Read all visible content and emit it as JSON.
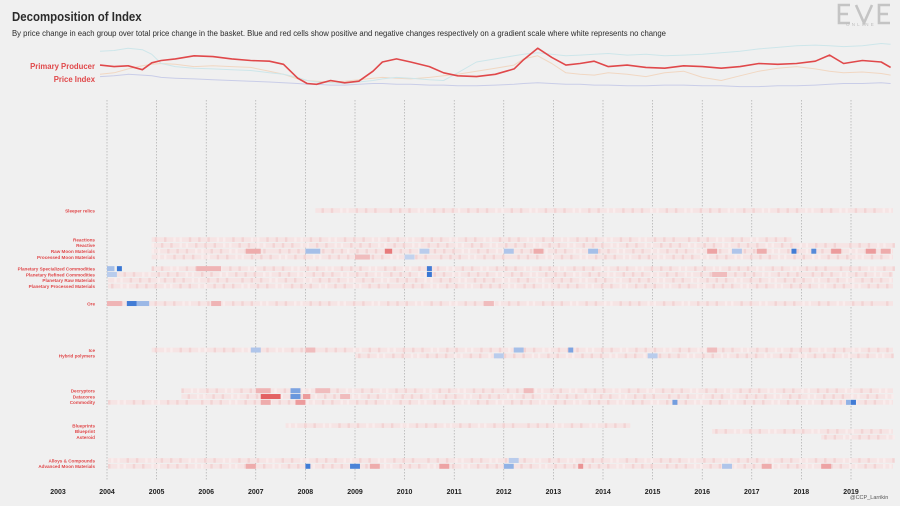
{
  "header": {
    "title": "Decomposition of Index",
    "subtitle": "By price change in each group over total price change in the basket. Blue and red cells show positive and negative changes respectively on a gradient scale where white represents no change",
    "logo_text": "EVE",
    "logo_subtext": "ONLINE",
    "credit": "@CCP_Larrikin"
  },
  "colors": {
    "index_line": "#e0484a",
    "positive": "#2e6fd1",
    "negative": "#e0484a",
    "highlight_label": "#e0484a",
    "faded_label": "#f2c2c2",
    "gridline": "#a0a0a0",
    "background": "#f0f0f0"
  },
  "chart_data": [
    {
      "type": "line",
      "title": "Primary Producer Price Index",
      "x": [
        2003.0,
        2003.3,
        2003.6,
        2003.9,
        2004.1,
        2004.3,
        2004.6,
        2005.0,
        2005.4,
        2005.8,
        2006.2,
        2006.6,
        2006.9,
        2007.2,
        2007.4,
        2007.6,
        2007.9,
        2008.2,
        2008.5,
        2008.8,
        2009.0,
        2009.3,
        2009.6,
        2010.0,
        2010.3,
        2010.6,
        2011.0,
        2011.4,
        2011.8,
        2012.0,
        2012.3,
        2012.6,
        2012.9,
        2013.2,
        2013.5,
        2013.8,
        2014.2,
        2014.6,
        2015.0,
        2015.4,
        2015.8,
        2016.2,
        2016.6,
        2017.0,
        2017.4,
        2017.8,
        2018.2,
        2018.5,
        2018.8,
        2019.2,
        2019.6,
        2019.8
      ],
      "series": [
        {
          "name": "Primary Producer Price Index",
          "values": [
            120,
            118,
            119,
            114,
            123,
            126,
            128,
            132,
            131,
            128,
            126,
            125,
            121,
            103,
            96,
            95,
            100,
            97,
            99,
            112,
            124,
            128,
            124,
            118,
            110,
            106,
            105,
            108,
            115,
            127,
            142,
            130,
            120,
            122,
            125,
            118,
            120,
            117,
            116,
            119,
            118,
            116,
            118,
            122,
            121,
            122,
            125,
            133,
            122,
            126,
            124,
            117
          ]
        },
        {
          "values": [
            138,
            139,
            142,
            140,
            134,
            122,
            118,
            116,
            115,
            114,
            113,
            110,
            108,
            104,
            100,
            98,
            97,
            96,
            98,
            100,
            102,
            104,
            103,
            101,
            100,
            110,
            124,
            128,
            132,
            134,
            136,
            134,
            132,
            133,
            134,
            135,
            133,
            134,
            132,
            133,
            134,
            136,
            138,
            141,
            143,
            145,
            146,
            145,
            144,
            145,
            148,
            147
          ]
        },
        {
          "values": [
            108,
            110,
            115,
            119,
            121,
            122,
            121,
            118,
            119,
            118,
            117,
            112,
            108,
            102,
            100,
            99,
            98,
            99,
            101,
            103,
            104,
            103,
            102,
            104,
            106,
            108,
            112,
            116,
            120,
            128,
            132,
            122,
            110,
            108,
            107,
            110,
            108,
            105,
            110,
            112,
            104,
            100,
            106,
            112,
            116,
            118,
            115,
            112,
            110,
            111,
            109,
            107
          ]
        },
        {
          "values": [
            105,
            106,
            108,
            107,
            106,
            104,
            103,
            102,
            101,
            100,
            99,
            98,
            97,
            96,
            95,
            95,
            94,
            94,
            95,
            96,
            96,
            95,
            95,
            94,
            94,
            93,
            93,
            94,
            95,
            96,
            97,
            96,
            95,
            95,
            94,
            94,
            93,
            93,
            94,
            94,
            93,
            93,
            92,
            92,
            93,
            93,
            94,
            95,
            96,
            96,
            97,
            96
          ]
        }
      ],
      "ylim": [
        85,
        150
      ]
    },
    {
      "type": "heatmap",
      "x_ticks": [
        "2003",
        "2004",
        "2005",
        "2006",
        "2007",
        "2008",
        "2009",
        "2010",
        "2011",
        "2012",
        "2013",
        "2014",
        "2015",
        "2016",
        "2017",
        "2018",
        "2019"
      ],
      "xlim": [
        2003.0,
        2019.85
      ],
      "rows": [
        {
          "label": "",
          "highlight": false
        },
        {
          "label": "",
          "highlight": false
        },
        {
          "label": "",
          "highlight": false
        },
        {
          "label": "",
          "highlight": false
        },
        {
          "label": "",
          "highlight": false
        },
        {
          "label": "",
          "highlight": false
        },
        {
          "label": "",
          "highlight": false
        },
        {
          "label": "",
          "highlight": false
        },
        {
          "label": "",
          "highlight": false
        },
        {
          "label": "",
          "highlight": false
        },
        {
          "label": "",
          "highlight": false
        },
        {
          "label": "",
          "highlight": false
        },
        {
          "label": "",
          "highlight": false
        },
        {
          "label": "",
          "highlight": false
        },
        {
          "label": "",
          "highlight": false
        },
        {
          "label": "",
          "highlight": false
        },
        {
          "label": "",
          "highlight": false
        },
        {
          "label": "",
          "highlight": false
        },
        {
          "label": "Sleeper relics",
          "highlight": true,
          "start": 2008.2,
          "end": 2019.85,
          "segments": []
        },
        {
          "label": "",
          "highlight": false
        },
        {
          "label": "",
          "highlight": false
        },
        {
          "label": "",
          "highlight": false
        },
        {
          "label": "",
          "highlight": false
        },
        {
          "label": "Reactions",
          "highlight": true,
          "start": 2004.9,
          "end": 2017.8,
          "segments": []
        },
        {
          "label": "Reactive",
          "highlight": true,
          "start": 2004.9,
          "end": 2019.85,
          "segments": []
        },
        {
          "label": "Raw Moon Materials",
          "highlight": true,
          "start": 2004.9,
          "end": 2019.85,
          "segments": [
            [
              2006.8,
              2007.1,
              -0.4
            ],
            [
              2008.0,
              2008.3,
              0.4
            ],
            [
              2009.6,
              2009.75,
              -0.7
            ],
            [
              2010.3,
              2010.5,
              0.3
            ],
            [
              2012.0,
              2012.2,
              0.35
            ],
            [
              2012.6,
              2012.8,
              -0.4
            ],
            [
              2013.7,
              2013.9,
              0.4
            ],
            [
              2016.1,
              2016.3,
              -0.45
            ],
            [
              2016.6,
              2016.8,
              0.35
            ],
            [
              2017.1,
              2017.3,
              -0.4
            ],
            [
              2017.8,
              2017.9,
              0.9
            ],
            [
              2018.2,
              2018.3,
              0.8
            ],
            [
              2018.6,
              2018.8,
              -0.5
            ],
            [
              2019.3,
              2019.5,
              -0.5
            ],
            [
              2019.6,
              2019.8,
              -0.4
            ]
          ]
        },
        {
          "label": "Processed Moon Materials",
          "highlight": true,
          "start": 2004.9,
          "end": 2019.85,
          "segments": [
            [
              2009.0,
              2009.3,
              -0.3
            ],
            [
              2010.0,
              2010.2,
              0.25
            ]
          ]
        },
        {
          "label": "",
          "highlight": false
        },
        {
          "label": "Planetary Specialized Commodities",
          "highlight": true,
          "start": 2004.9,
          "end": 2019.85,
          "segments": [
            [
              2004.2,
              2004.3,
              0.95
            ],
            [
              2004.0,
              2004.15,
              0.4
            ],
            [
              2005.8,
              2006.3,
              -0.35
            ],
            [
              2010.45,
              2010.55,
              0.9
            ]
          ]
        },
        {
          "label": "Planetary Refined Commodities",
          "highlight": true,
          "start": 2004.0,
          "end": 2019.85,
          "segments": [
            [
              2004.0,
              2004.2,
              0.3
            ],
            [
              2010.45,
              2010.55,
              0.95
            ],
            [
              2016.2,
              2016.5,
              -0.3
            ]
          ]
        },
        {
          "label": "Planetary Raw Materials",
          "highlight": true,
          "start": 2004.0,
          "end": 2019.85,
          "segments": []
        },
        {
          "label": "Planetary Processed Materials",
          "highlight": true,
          "start": 2004.0,
          "end": 2019.85,
          "segments": []
        },
        {
          "label": "",
          "highlight": false
        },
        {
          "label": "",
          "highlight": false
        },
        {
          "label": "Ore",
          "highlight": true,
          "start": 2004.0,
          "end": 2019.85,
          "segments": [
            [
              2004.0,
              2004.3,
              -0.35
            ],
            [
              2004.4,
              2004.6,
              0.9
            ],
            [
              2004.6,
              2004.85,
              0.45
            ],
            [
              2006.1,
              2006.3,
              -0.35
            ],
            [
              2011.6,
              2011.8,
              -0.3
            ]
          ]
        },
        {
          "label": "",
          "highlight": false
        },
        {
          "label": "",
          "highlight": false
        },
        {
          "label": "",
          "highlight": false
        },
        {
          "label": "",
          "highlight": false
        },
        {
          "label": "",
          "highlight": false
        },
        {
          "label": "",
          "highlight": false
        },
        {
          "label": "",
          "highlight": false
        },
        {
          "label": "Ice",
          "highlight": true,
          "start": 2004.9,
          "end": 2019.85,
          "segments": [
            [
              2006.9,
              2007.1,
              0.35
            ],
            [
              2008.0,
              2008.2,
              -0.3
            ],
            [
              2012.2,
              2012.4,
              0.4
            ],
            [
              2013.3,
              2013.4,
              0.6
            ],
            [
              2016.1,
              2016.3,
              -0.3
            ]
          ]
        },
        {
          "label": "Hybrid polymers",
          "highlight": true,
          "start": 2009.0,
          "end": 2019.85,
          "segments": [
            [
              2011.8,
              2012.0,
              0.3
            ],
            [
              2014.9,
              2015.1,
              0.3
            ]
          ]
        },
        {
          "label": "",
          "highlight": false
        },
        {
          "label": "",
          "highlight": false
        },
        {
          "label": "",
          "highlight": false
        },
        {
          "label": "",
          "highlight": false
        },
        {
          "label": "",
          "highlight": false
        },
        {
          "label": "Decryptors",
          "highlight": true,
          "start": 2005.5,
          "end": 2019.85,
          "segments": [
            [
              2007.0,
              2007.3,
              -0.35
            ],
            [
              2007.7,
              2007.9,
              0.6
            ],
            [
              2008.2,
              2008.5,
              -0.3
            ],
            [
              2012.4,
              2012.6,
              -0.3
            ]
          ]
        },
        {
          "label": "Datacores",
          "highlight": true,
          "start": 2005.5,
          "end": 2019.85,
          "segments": [
            [
              2007.1,
              2007.5,
              -0.85
            ],
            [
              2007.7,
              2007.9,
              0.7
            ],
            [
              2007.95,
              2008.1,
              -0.5
            ],
            [
              2008.7,
              2008.9,
              -0.3
            ]
          ]
        },
        {
          "label": "Commodity",
          "highlight": true,
          "start": 2004.0,
          "end": 2019.85,
          "segments": [
            [
              2007.1,
              2007.3,
              -0.4
            ],
            [
              2007.8,
              2008.0,
              -0.5
            ],
            [
              2015.4,
              2015.5,
              0.65
            ],
            [
              2019.0,
              2019.1,
              0.9
            ],
            [
              2018.9,
              2019.0,
              0.5
            ]
          ]
        },
        {
          "label": "",
          "highlight": false
        },
        {
          "label": "",
          "highlight": false
        },
        {
          "label": "",
          "highlight": false
        },
        {
          "label": "Blueprints",
          "highlight": true,
          "start": 2007.6,
          "end": 2014.55,
          "segments": []
        },
        {
          "label": "Blueprint",
          "highlight": true,
          "start": 2016.2,
          "end": 2019.85,
          "segments": []
        },
        {
          "label": "Asteroid",
          "highlight": true,
          "start": 2018.4,
          "end": 2019.85,
          "segments": []
        },
        {
          "label": "",
          "highlight": false
        },
        {
          "label": "",
          "highlight": false
        },
        {
          "label": "",
          "highlight": false
        },
        {
          "label": "Alloys & Compounds",
          "highlight": true,
          "start": 2004.0,
          "end": 2019.85,
          "segments": [
            [
              2012.1,
              2012.3,
              0.3
            ]
          ]
        },
        {
          "label": "Advanced Moon Materials",
          "highlight": true,
          "start": 2004.0,
          "end": 2019.85,
          "segments": [
            [
              2006.8,
              2007.0,
              -0.4
            ],
            [
              2008.0,
              2008.1,
              0.9
            ],
            [
              2008.9,
              2009.1,
              0.85
            ],
            [
              2009.3,
              2009.5,
              -0.4
            ],
            [
              2010.7,
              2010.9,
              -0.45
            ],
            [
              2012.0,
              2012.2,
              0.5
            ],
            [
              2013.5,
              2013.6,
              -0.55
            ],
            [
              2016.4,
              2016.6,
              0.35
            ],
            [
              2017.2,
              2017.4,
              -0.4
            ],
            [
              2018.4,
              2018.6,
              -0.45
            ]
          ]
        },
        {
          "label": "",
          "highlight": false
        }
      ]
    }
  ]
}
